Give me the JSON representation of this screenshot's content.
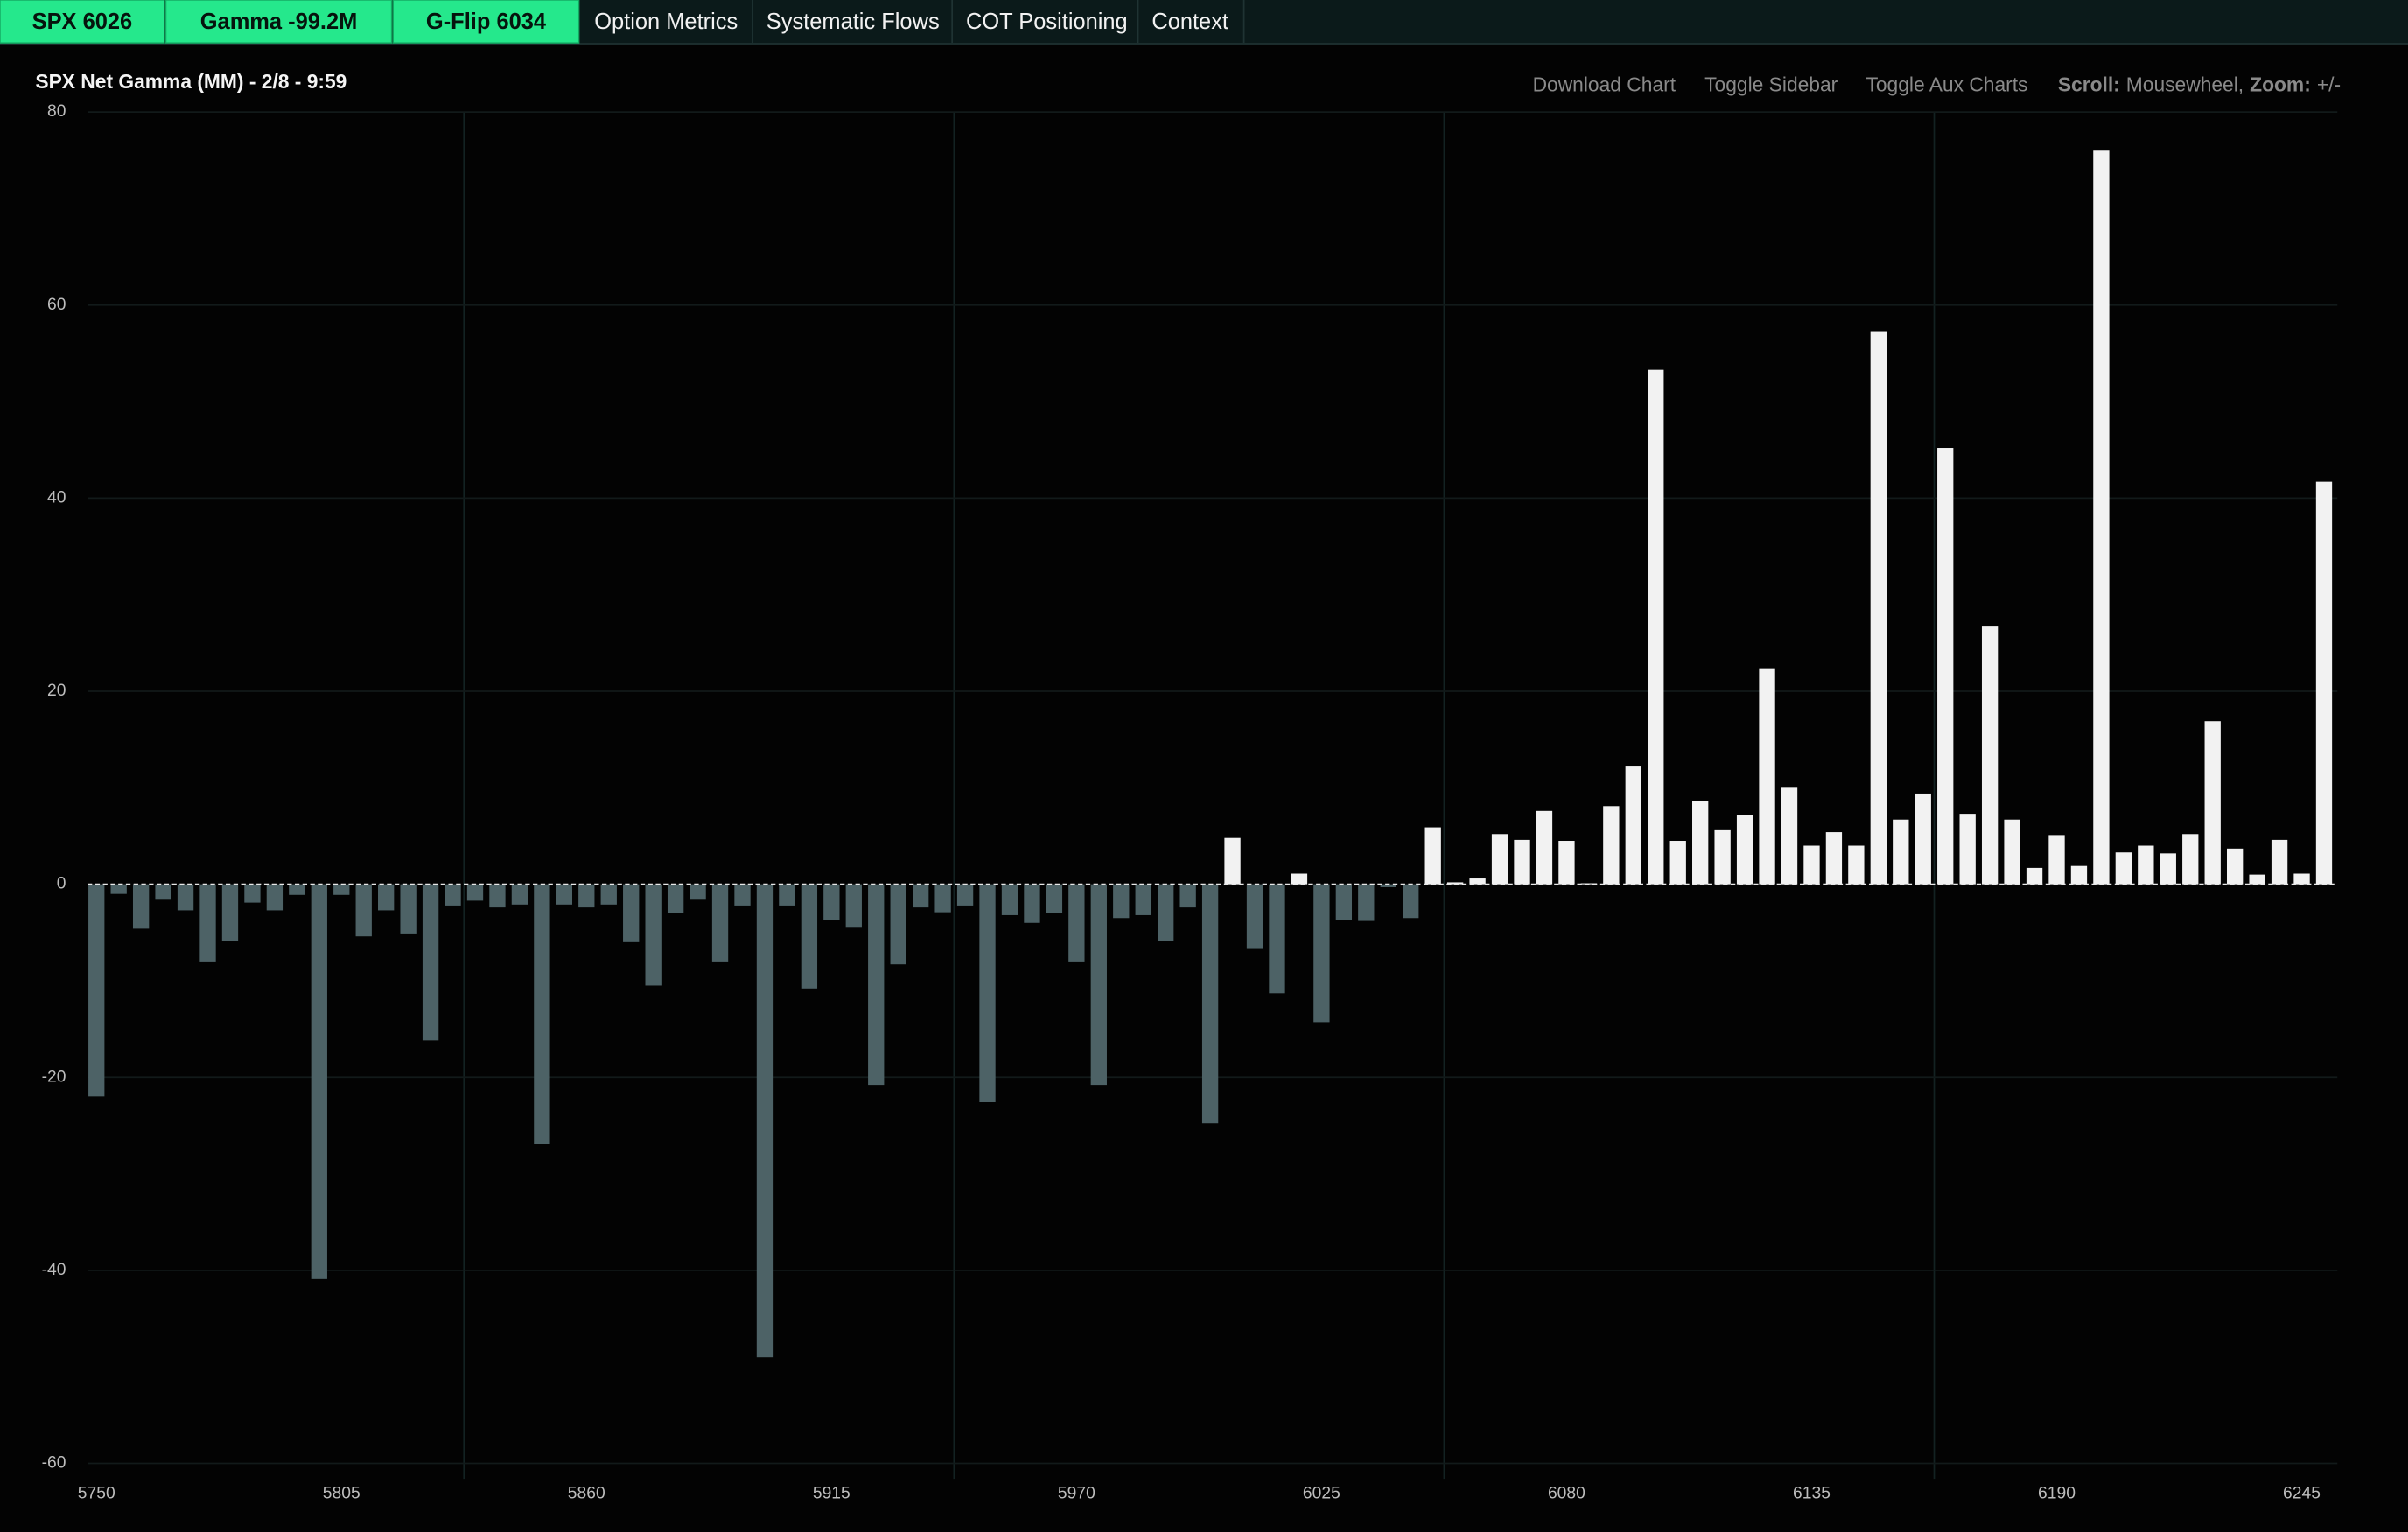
{
  "nav": {
    "badges": [
      "SPX 6026",
      "Gamma -99.2M",
      "G-Flip 6034"
    ],
    "tabs": [
      "Option Metrics",
      "Systematic Flows",
      "COT Positioning",
      "Context"
    ]
  },
  "toolbar": {
    "buttons": [
      "Download Chart",
      "Toggle Sidebar",
      "Toggle Aux Charts"
    ],
    "help": [
      {
        "label": "Scroll:",
        "text": "Mousewheel,"
      },
      {
        "label": "Zoom:",
        "text": "+/-"
      }
    ]
  },
  "chart_data": {
    "type": "bar",
    "title": "SPX Net Gamma (MM) - 2/8 - 9:59",
    "x": [
      5750,
      5755,
      5760,
      5765,
      5770,
      5775,
      5780,
      5785,
      5790,
      5795,
      5800,
      5805,
      5810,
      5815,
      5820,
      5825,
      5830,
      5835,
      5840,
      5845,
      5850,
      5855,
      5860,
      5865,
      5870,
      5875,
      5880,
      5885,
      5890,
      5895,
      5900,
      5905,
      5910,
      5915,
      5920,
      5925,
      5930,
      5935,
      5940,
      5945,
      5950,
      5955,
      5960,
      5965,
      5970,
      5975,
      5980,
      5985,
      5990,
      5995,
      6000,
      6005,
      6010,
      6015,
      6020,
      6025,
      6030,
      6035,
      6040,
      6045,
      6050,
      6055,
      6060,
      6065,
      6070,
      6075,
      6080,
      6085,
      6090,
      6095,
      6100,
      6105,
      6110,
      6115,
      6120,
      6125,
      6130,
      6135,
      6140,
      6145,
      6150,
      6155,
      6160,
      6165,
      6170,
      6175,
      6180,
      6185,
      6190,
      6195,
      6200,
      6205,
      6210,
      6215,
      6220,
      6225,
      6230,
      6235,
      6240,
      6245,
      6250
    ],
    "values": [
      -22.0,
      -1.0,
      -4.6,
      -1.6,
      -2.7,
      -8.0,
      -5.9,
      -1.9,
      -2.7,
      -1.1,
      -40.9,
      -1.1,
      -5.4,
      -2.7,
      -5.1,
      -16.2,
      -2.2,
      -1.7,
      -2.4,
      -2.1,
      -26.9,
      -2.1,
      -2.4,
      -2.1,
      -6.0,
      -10.5,
      -3.0,
      -1.6,
      -8.0,
      -2.2,
      -49.0,
      -2.2,
      -10.8,
      -3.7,
      -4.5,
      -20.8,
      -8.3,
      -2.4,
      -2.9,
      -2.2,
      -22.6,
      -3.2,
      -4.0,
      -3.0,
      -8.0,
      -20.8,
      -3.5,
      -3.2,
      -5.9,
      -2.4,
      -24.8,
      4.8,
      -6.7,
      -11.3,
      1.1,
      -14.3,
      -3.7,
      -3.8,
      -0.3,
      -3.5,
      5.9,
      0.2,
      0.6,
      5.2,
      4.6,
      7.6,
      4.5,
      0.1,
      8.1,
      12.2,
      53.3,
      4.5,
      8.6,
      5.6,
      7.2,
      22.3,
      10.0,
      4.0,
      5.4,
      4.0,
      57.3,
      6.7,
      9.4,
      45.2,
      7.3,
      26.7,
      6.7,
      1.7,
      5.1,
      1.9,
      76.0,
      3.3,
      4.0,
      3.2,
      5.2,
      16.9,
      3.7,
      1.0,
      4.6,
      1.1,
      41.7
    ],
    "positive_color": "#f2f2f2",
    "negative_color": "#4d6266",
    "xlim": [
      5748,
      6253
    ],
    "xticks": [
      5750,
      5805,
      5860,
      5915,
      5970,
      6025,
      6080,
      6135,
      6190,
      6245
    ],
    "x_grid": [
      5832.5,
      5942.5,
      6052.5,
      6162.5
    ],
    "ylim": [
      -60,
      80
    ],
    "yticks": [
      -60,
      -40,
      -20,
      0,
      20,
      40,
      60,
      80
    ],
    "grid": true
  }
}
